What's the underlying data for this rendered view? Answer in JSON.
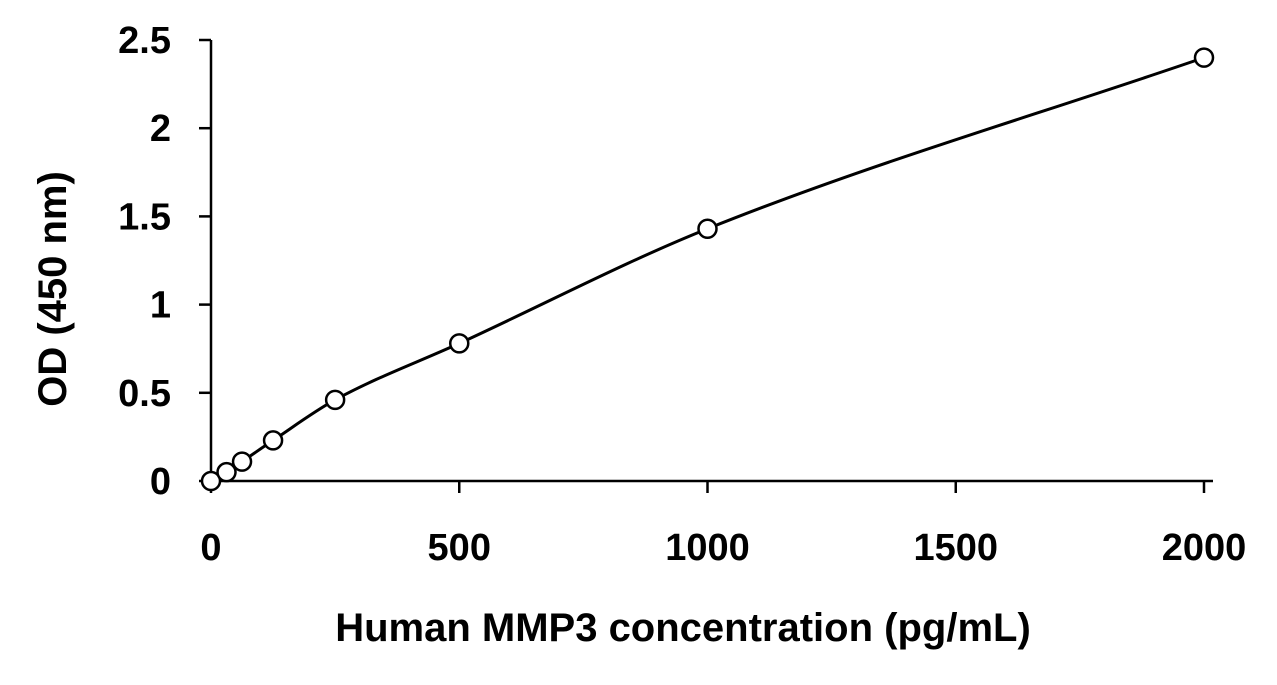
{
  "chart_data": {
    "type": "scatter",
    "xlabel": "Human MMP3 concentration (pg/mL)",
    "ylabel": "OD (450 nm)",
    "xlim": [
      0,
      2000
    ],
    "ylim": [
      0,
      2.5
    ],
    "x_ticks": [
      "0",
      "500",
      "1000",
      "1500",
      "2000"
    ],
    "y_ticks": [
      "0",
      "0.5",
      "1",
      "1.5",
      "2",
      "2.5"
    ],
    "grid": false,
    "legend": "none",
    "trendline": "smooth",
    "series": [
      {
        "x": [
          0,
          31.25,
          62.5,
          125,
          250,
          500,
          1000,
          2000
        ],
        "y": [
          0.0,
          0.05,
          0.11,
          0.23,
          0.46,
          0.78,
          1.43,
          2.4
        ]
      }
    ]
  }
}
